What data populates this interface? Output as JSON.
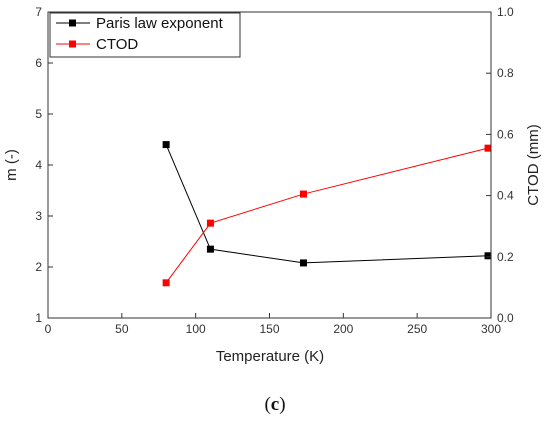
{
  "chart_data": {
    "type": "line",
    "x": [
      80,
      110,
      173,
      298
    ],
    "xlabel": "Temperature (K)",
    "xlim": [
      0,
      300
    ],
    "xticks": [
      0,
      50,
      100,
      150,
      200,
      250,
      300
    ],
    "grid": false,
    "legend_position": "top-left",
    "series": [
      {
        "name": "Paris law exponent",
        "axis": "left",
        "color": "#000000",
        "marker": "square",
        "values": [
          4.4,
          2.35,
          2.08,
          2.22
        ]
      },
      {
        "name": "CTOD",
        "axis": "right",
        "color": "#ff0000",
        "marker": "square",
        "values": [
          0.115,
          0.31,
          0.405,
          0.555
        ]
      }
    ],
    "y_left": {
      "label": "m (-)",
      "lim": [
        1,
        7
      ],
      "ticks": [
        1,
        2,
        3,
        4,
        5,
        6,
        7
      ]
    },
    "y_right": {
      "label": "CTOD (mm)",
      "lim": [
        0.0,
        1.0
      ],
      "ticks": [
        "0.0",
        "0.2",
        "0.4",
        "0.6",
        "0.8",
        "1.0"
      ]
    },
    "panel_label": "c"
  }
}
